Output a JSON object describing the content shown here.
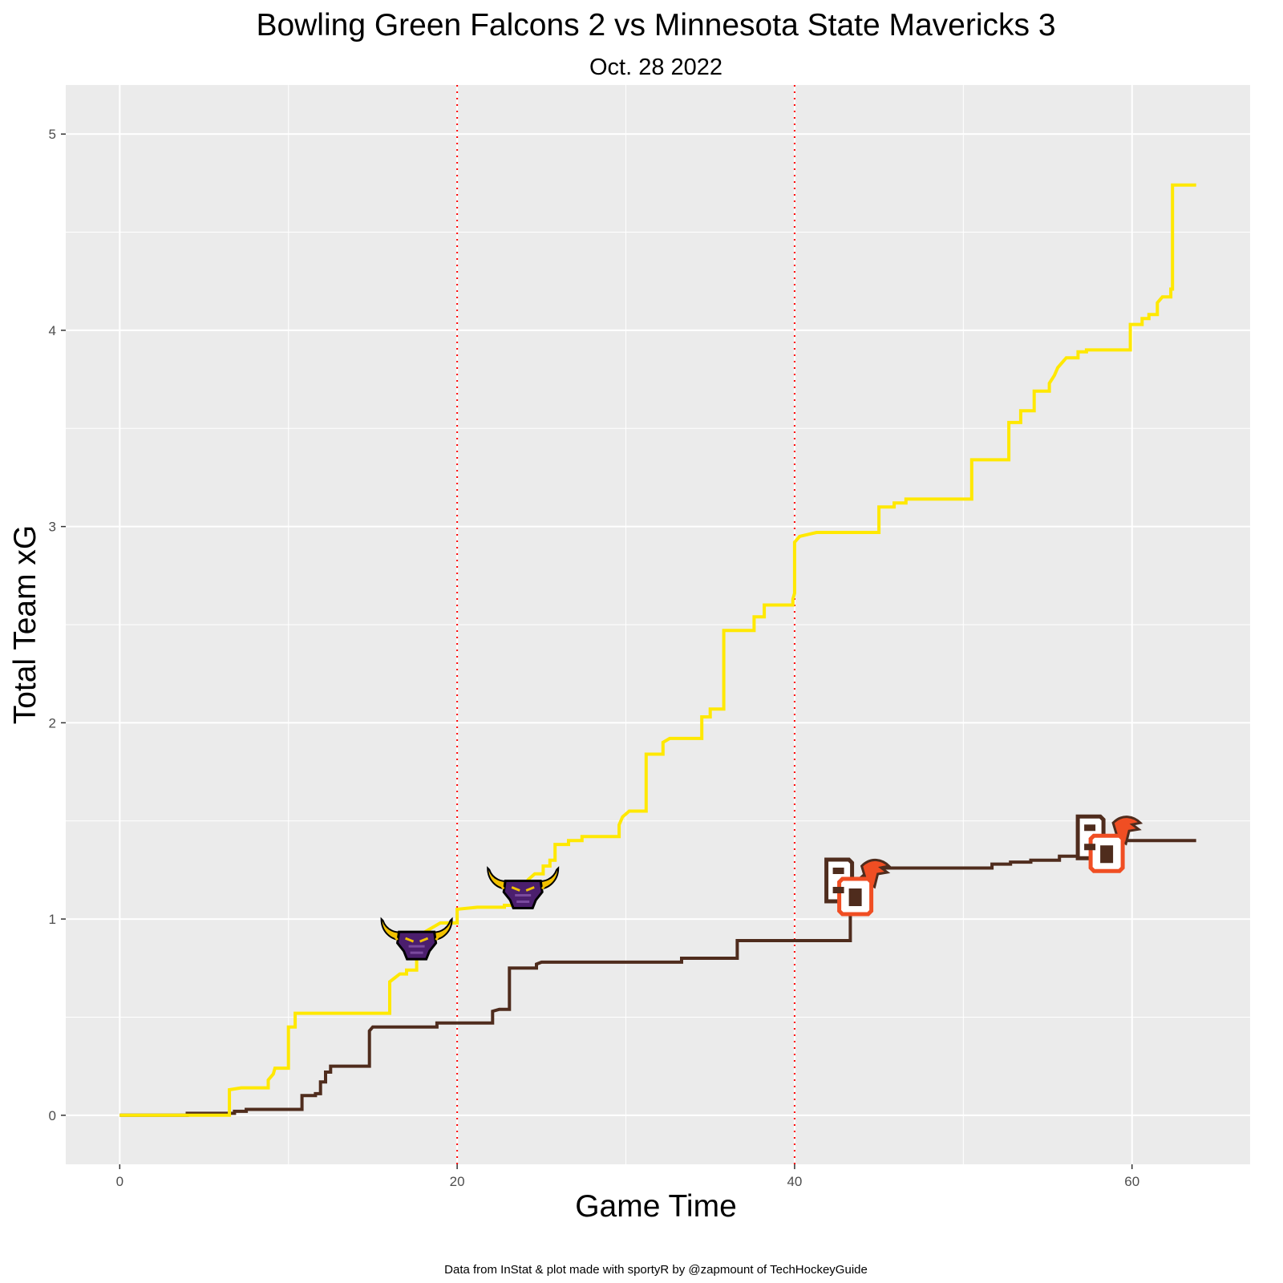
{
  "chart_data": {
    "type": "line",
    "step": true,
    "title": "Bowling Green Falcons 2 vs Minnesota State Mavericks 3",
    "subtitle": "Oct. 28 2022",
    "xlabel": "Game Time",
    "ylabel": "Total Team xG",
    "caption": "Data from InStat & plot made with sportyR by @zapmount of TechHockeyGuide",
    "xlim": [
      -3.2,
      67.0
    ],
    "ylim": [
      -0.25,
      5.25
    ],
    "x_ticks": [
      0,
      20,
      40,
      60
    ],
    "y_ticks": [
      0,
      1,
      2,
      3,
      4,
      5
    ],
    "grid": true,
    "background": "#EBEBEB",
    "period_lines": [
      20,
      40
    ],
    "period_line_color": "#FF0000",
    "series": [
      {
        "team": "Minnesota State Mavericks",
        "color": "#FFE800",
        "points": [
          [
            0,
            0
          ],
          [
            6.5,
            0
          ],
          [
            6.5,
            0.13
          ],
          [
            7.2,
            0.14
          ],
          [
            8.8,
            0.14
          ],
          [
            8.8,
            0.18
          ],
          [
            9.1,
            0.21
          ],
          [
            9.2,
            0.24
          ],
          [
            10.0,
            0.24
          ],
          [
            10.0,
            0.45
          ],
          [
            10.4,
            0.45
          ],
          [
            10.4,
            0.52
          ],
          [
            16.0,
            0.52
          ],
          [
            16.0,
            0.68
          ],
          [
            16.3,
            0.7
          ],
          [
            16.6,
            0.72
          ],
          [
            17.0,
            0.72
          ],
          [
            17.0,
            0.74
          ],
          [
            17.6,
            0.74
          ],
          [
            17.6,
            0.91
          ],
          [
            18.6,
            0.96
          ],
          [
            19.0,
            0.98
          ],
          [
            20.0,
            0.98
          ],
          [
            20.0,
            1.05
          ],
          [
            21.2,
            1.06
          ],
          [
            22.8,
            1.06
          ],
          [
            22.8,
            1.07
          ],
          [
            23.8,
            1.07
          ],
          [
            23.8,
            1.13
          ],
          [
            24.2,
            1.2
          ],
          [
            24.6,
            1.23
          ],
          [
            25.1,
            1.23
          ],
          [
            25.1,
            1.27
          ],
          [
            25.5,
            1.27
          ],
          [
            25.5,
            1.3
          ],
          [
            25.8,
            1.3
          ],
          [
            25.8,
            1.38
          ],
          [
            26.6,
            1.38
          ],
          [
            26.6,
            1.4
          ],
          [
            27.4,
            1.4
          ],
          [
            27.4,
            1.42
          ],
          [
            29.6,
            1.42
          ],
          [
            29.6,
            1.48
          ],
          [
            29.8,
            1.52
          ],
          [
            30.2,
            1.55
          ],
          [
            31.2,
            1.55
          ],
          [
            31.2,
            1.84
          ],
          [
            32.2,
            1.84
          ],
          [
            32.2,
            1.9
          ],
          [
            32.6,
            1.92
          ],
          [
            34.5,
            1.92
          ],
          [
            34.5,
            2.03
          ],
          [
            35.0,
            2.03
          ],
          [
            35.0,
            2.07
          ],
          [
            35.8,
            2.07
          ],
          [
            35.8,
            2.47
          ],
          [
            37.6,
            2.47
          ],
          [
            37.6,
            2.54
          ],
          [
            38.2,
            2.54
          ],
          [
            38.2,
            2.6
          ],
          [
            39.9,
            2.6
          ],
          [
            39.9,
            2.63
          ],
          [
            40.0,
            2.66
          ],
          [
            40.0,
            2.92
          ],
          [
            40.3,
            2.95
          ],
          [
            40.8,
            2.96
          ],
          [
            41.3,
            2.97
          ],
          [
            45.0,
            2.97
          ],
          [
            45.0,
            3.1
          ],
          [
            45.9,
            3.1
          ],
          [
            45.9,
            3.12
          ],
          [
            46.6,
            3.12
          ],
          [
            46.6,
            3.14
          ],
          [
            50.5,
            3.14
          ],
          [
            50.5,
            3.34
          ],
          [
            52.7,
            3.34
          ],
          [
            52.7,
            3.53
          ],
          [
            53.4,
            3.53
          ],
          [
            53.4,
            3.59
          ],
          [
            54.2,
            3.59
          ],
          [
            54.2,
            3.69
          ],
          [
            55.1,
            3.69
          ],
          [
            55.1,
            3.73
          ],
          [
            55.4,
            3.77
          ],
          [
            55.6,
            3.81
          ],
          [
            55.8,
            3.83
          ],
          [
            56.1,
            3.86
          ],
          [
            56.8,
            3.86
          ],
          [
            56.8,
            3.89
          ],
          [
            57.3,
            3.89
          ],
          [
            57.3,
            3.9
          ],
          [
            59.9,
            3.9
          ],
          [
            59.9,
            4.03
          ],
          [
            60.6,
            4.03
          ],
          [
            60.6,
            4.06
          ],
          [
            61.0,
            4.06
          ],
          [
            61.0,
            4.08
          ],
          [
            61.5,
            4.08
          ],
          [
            61.5,
            4.14
          ],
          [
            61.8,
            4.17
          ],
          [
            62.3,
            4.17
          ],
          [
            62.3,
            4.21
          ],
          [
            62.4,
            4.21
          ],
          [
            62.4,
            4.74
          ],
          [
            63.8,
            4.74
          ]
        ]
      },
      {
        "team": "Bowling Green Falcons",
        "color": "#4F2C1D",
        "points": [
          [
            0,
            0
          ],
          [
            4.0,
            0
          ],
          [
            4.0,
            0.01
          ],
          [
            6.8,
            0.01
          ],
          [
            6.8,
            0.02
          ],
          [
            7.5,
            0.02
          ],
          [
            7.5,
            0.03
          ],
          [
            10.8,
            0.03
          ],
          [
            10.8,
            0.1
          ],
          [
            11.6,
            0.1
          ],
          [
            11.6,
            0.11
          ],
          [
            11.9,
            0.11
          ],
          [
            11.9,
            0.17
          ],
          [
            12.2,
            0.17
          ],
          [
            12.2,
            0.22
          ],
          [
            12.5,
            0.22
          ],
          [
            12.5,
            0.25
          ],
          [
            14.8,
            0.25
          ],
          [
            14.8,
            0.43
          ],
          [
            15.0,
            0.45
          ],
          [
            18.8,
            0.45
          ],
          [
            18.8,
            0.47
          ],
          [
            22.1,
            0.47
          ],
          [
            22.1,
            0.53
          ],
          [
            22.5,
            0.54
          ],
          [
            23.1,
            0.54
          ],
          [
            23.1,
            0.75
          ],
          [
            24.7,
            0.75
          ],
          [
            24.7,
            0.77
          ],
          [
            25.0,
            0.78
          ],
          [
            33.3,
            0.78
          ],
          [
            33.3,
            0.8
          ],
          [
            36.6,
            0.8
          ],
          [
            36.6,
            0.89
          ],
          [
            43.3,
            0.89
          ],
          [
            43.3,
            1.05
          ],
          [
            43.8,
            1.2
          ],
          [
            44.6,
            1.26
          ],
          [
            51.7,
            1.26
          ],
          [
            51.7,
            1.28
          ],
          [
            52.8,
            1.28
          ],
          [
            52.8,
            1.29
          ],
          [
            54.0,
            1.29
          ],
          [
            54.0,
            1.3
          ],
          [
            55.7,
            1.3
          ],
          [
            55.7,
            1.32
          ],
          [
            57.6,
            1.32
          ],
          [
            57.6,
            1.38
          ],
          [
            58.1,
            1.4
          ],
          [
            63.8,
            1.4
          ]
        ]
      }
    ],
    "goals": [
      {
        "team": "Minnesota State Mavericks",
        "logo": "maverick-logo",
        "x": 17.6,
        "y": 0.91
      },
      {
        "team": "Minnesota State Mavericks",
        "logo": "maverick-logo",
        "x": 23.9,
        "y": 1.17
      },
      {
        "team": "Bowling Green Falcons",
        "logo": "bg-falcon-logo",
        "x": 43.5,
        "y": 1.18
      },
      {
        "team": "Bowling Green Falcons",
        "logo": "bg-falcon-logo",
        "x": 58.4,
        "y": 1.4
      }
    ]
  }
}
